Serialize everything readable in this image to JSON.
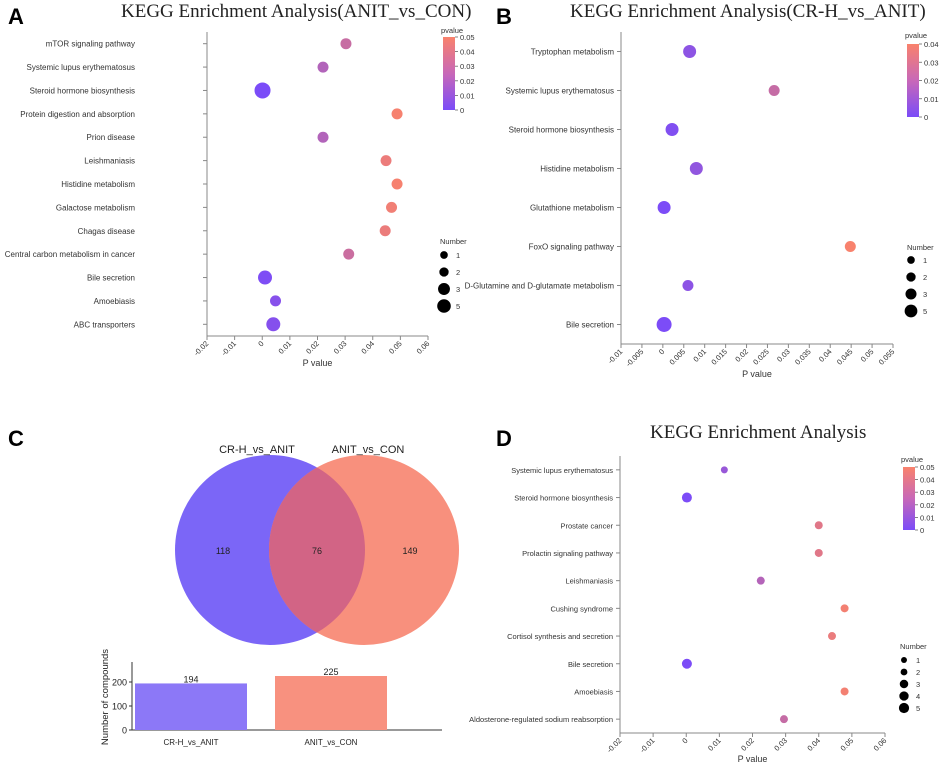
{
  "panels": {
    "a": {
      "letter": "A",
      "title": "KEGG Enrichment Analysis(ANIT_vs_CON)"
    },
    "b": {
      "letter": "B",
      "title": "KEGG Enrichment Analysis(CR-H_vs_ANIT)"
    },
    "c": {
      "letter": "C"
    },
    "d": {
      "letter": "D",
      "title": "KEGG Enrichment Analysis"
    }
  },
  "chart_data": [
    {
      "id": "a",
      "type": "scatter",
      "title": "KEGG Enrichment Analysis(ANIT_vs_CON)",
      "xlabel": "P value",
      "xticks": [
        "-0.02",
        "-0.01",
        "0",
        "0.01",
        "0.02",
        "0.03",
        "0.04",
        "0.05",
        "0.06"
      ],
      "xlim": [
        -0.02,
        0.06
      ],
      "colorbar": {
        "title": "pvalue",
        "ticks": [
          "0.05",
          "0.04",
          "0.03",
          "0.02",
          "0.01",
          "0"
        ],
        "max": 0.05
      },
      "size_legend": {
        "title": "Number",
        "labels": [
          "1",
          "2",
          "3",
          "5"
        ]
      },
      "points": [
        {
          "label": "mTOR signaling pathway",
          "x": 0.0303,
          "size": 2
        },
        {
          "label": "Systemic lupus erythematosus",
          "x": 0.022,
          "size": 2
        },
        {
          "label": "Steroid hormone biosynthesis",
          "x": 0.0001,
          "size": 5
        },
        {
          "label": "Protein digestion and absorption",
          "x": 0.0488,
          "size": 2
        },
        {
          "label": "Prion disease",
          "x": 0.022,
          "size": 2
        },
        {
          "label": "Leishmaniasis",
          "x": 0.0448,
          "size": 2
        },
        {
          "label": "Histidine metabolism",
          "x": 0.0488,
          "size": 2
        },
        {
          "label": "Galactose metabolism",
          "x": 0.0468,
          "size": 2
        },
        {
          "label": "Chagas disease",
          "x": 0.0445,
          "size": 2
        },
        {
          "label": "Central carbon metabolism in cancer",
          "x": 0.0313,
          "size": 2
        },
        {
          "label": "Bile secretion",
          "x": 0.001,
          "size": 3
        },
        {
          "label": "Amoebiasis",
          "x": 0.0048,
          "size": 2
        },
        {
          "label": "ABC transporters",
          "x": 0.004,
          "size": 3
        }
      ]
    },
    {
      "id": "b",
      "type": "scatter",
      "title": "KEGG Enrichment Analysis(CR-H_vs_ANIT)",
      "xlabel": "P value",
      "xticks": [
        "-0.01",
        "-0.005",
        "0",
        "0.005",
        "0.01",
        "0.015",
        "0.02",
        "0.025",
        "0.03",
        "0.035",
        "0.04",
        "0.045",
        "0.05",
        "0.055"
      ],
      "xlim": [
        -0.01,
        0.055
      ],
      "colorbar": {
        "title": "pvalue",
        "ticks": [
          "0.04",
          "0.03",
          "0.02",
          "0.01",
          "0"
        ],
        "max": 0.045
      },
      "size_legend": {
        "title": "Number",
        "labels": [
          "1",
          "2",
          "3",
          "5"
        ]
      },
      "points": [
        {
          "label": "Tryptophan metabolism",
          "x": 0.0064,
          "size": 3
        },
        {
          "label": "Systemic lupus erythematosus",
          "x": 0.0266,
          "size": 2
        },
        {
          "label": "Steroid hormone biosynthesis",
          "x": 0.0022,
          "size": 3
        },
        {
          "label": "Histidine metabolism",
          "x": 0.008,
          "size": 3
        },
        {
          "label": "Glutathione metabolism",
          "x": 0.0003,
          "size": 3
        },
        {
          "label": "FoxO signaling pathway",
          "x": 0.0448,
          "size": 2
        },
        {
          "label": "D-Glutamine and D-glutamate metabolism",
          "x": 0.006,
          "size": 2
        },
        {
          "label": "Bile secretion",
          "x": 0.0003,
          "size": 5
        }
      ]
    },
    {
      "id": "c",
      "type": "bar",
      "venn": {
        "left_label": "CR-H_vs_ANIT",
        "right_label": "ANIT_vs_CON",
        "left_only": "118",
        "overlap": "76",
        "right_only": "149"
      },
      "ylabel": "Number of compounds",
      "yticks": [
        "200",
        "100",
        "0"
      ],
      "ylim": [
        0,
        250
      ],
      "categories": [
        "CR-H_vs_ANIT",
        "ANIT_vs_CON"
      ],
      "values": [
        194,
        225
      ],
      "value_labels": [
        "194",
        "225"
      ],
      "colors": [
        "#8c78f7",
        "#f8917f"
      ]
    },
    {
      "id": "d",
      "type": "scatter",
      "title": "KEGG Enrichment Analysis",
      "xlabel": "P value",
      "xticks": [
        "-0.02",
        "-0.01",
        "0",
        "0.01",
        "0.02",
        "0.03",
        "0.04",
        "0.05",
        "0.06"
      ],
      "xlim": [
        -0.02,
        0.06
      ],
      "colorbar": {
        "title": "pvalue",
        "ticks": [
          "0.05",
          "0.04",
          "0.03",
          "0.02",
          "0.01",
          "0"
        ],
        "max": 0.05
      },
      "size_legend": {
        "title": "Number",
        "labels": [
          "1",
          "2",
          "3",
          "4",
          "5"
        ]
      },
      "points": [
        {
          "label": "Systemic lupus erythematosus",
          "x": 0.0115,
          "size": 1
        },
        {
          "label": "Steroid hormone biosynthesis",
          "x": 0.0002,
          "size": 3
        },
        {
          "label": "Prostate cancer",
          "x": 0.04,
          "size": 2
        },
        {
          "label": "Prolactin signaling pathway",
          "x": 0.04,
          "size": 2
        },
        {
          "label": "Leishmaniasis",
          "x": 0.0225,
          "size": 2
        },
        {
          "label": "Cushing syndrome",
          "x": 0.0478,
          "size": 2
        },
        {
          "label": "Cortisol synthesis and secretion",
          "x": 0.044,
          "size": 2
        },
        {
          "label": "Bile secretion",
          "x": 0.0002,
          "size": 3
        },
        {
          "label": "Amoebiasis",
          "x": 0.0478,
          "size": 2
        },
        {
          "label": "Aldosterone-regulated sodium reabsorption",
          "x": 0.0295,
          "size": 2
        }
      ]
    }
  ],
  "colors": {
    "low": "#7b4cf8",
    "high": "#f9826c",
    "venn_left": "#7b66f7",
    "venn_right": "#f8907d",
    "venn_overlap": "#d26485"
  }
}
